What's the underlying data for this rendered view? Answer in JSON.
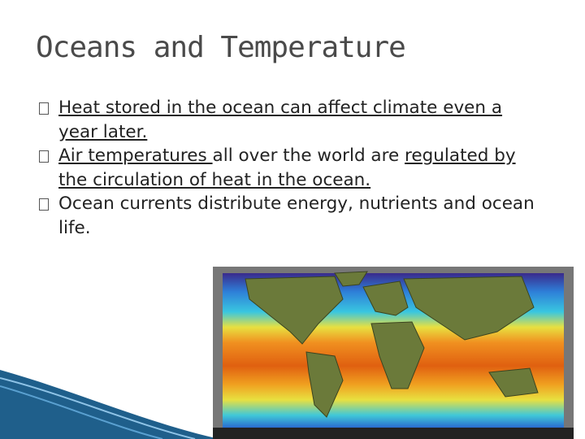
{
  "title": "Oceans and Temperature",
  "bullets": [
    {
      "segments": [
        {
          "text": "Heat stored in the ocean can affect climate even a year later.",
          "underline": true
        }
      ]
    },
    {
      "segments": [
        {
          "text": "Air temperatures ",
          "underline": true
        },
        {
          "text": "all over the world are ",
          "underline": false
        },
        {
          "text": "regulated by the circulation of heat in the ocean.",
          "underline": true
        }
      ]
    },
    {
      "segments": [
        {
          "text": "Ocean currents distribute energy, nutrients and ocean life.",
          "underline": false
        }
      ]
    }
  ]
}
